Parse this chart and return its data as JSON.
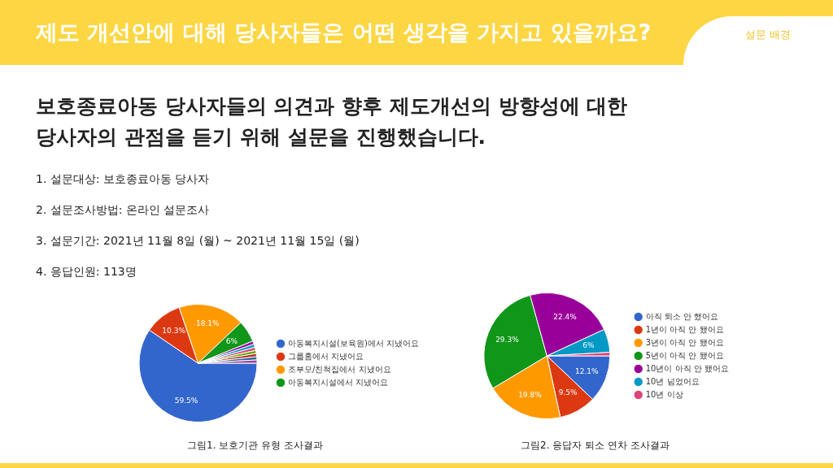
{
  "chart_data": [
    {
      "type": "other",
      "title": "제도 개선안에 대해 당사자들은 어떤 생각을 가지고 있을까요?",
      "subtitle": "보호종료아동 당사자들의 의견과 향후 제도개선의 방향성에 대한 당사자의 관점을 듣기 위해 설문을 진행했습니다.",
      "annotations": [
        "설문 배경",
        "1. 설문대상: 보호종료아동 당사자",
        "2. 설문조사방법: 온라인 설문조사",
        "3. 설문기간: 2021년 11월 8일 (월) ~ 2021년 11월 15일 (월)",
        "4. 응답인원: 113명"
      ]
    },
    {
      "type": "pie",
      "title": "그림1. 보호기관 유형 조사결과",
      "legend": "right",
      "categories": [
        "아동복지시설(보육원)에서 지냈어요",
        "그룹홈에서 지냈어요",
        "조부모/친척집에서 지냈어요",
        "아동복지시설에서 지냈어요",
        null,
        null,
        null,
        null,
        null,
        null,
        null
      ],
      "values": [
        59.5,
        10.3,
        18.1,
        6,
        0.87,
        0.87,
        0.87,
        0.87,
        0.87,
        0.87,
        0.88
      ],
      "value_labels": [
        "59.5%",
        "10.3%",
        "18.1%",
        "6%",
        null,
        null,
        null,
        null,
        null,
        null,
        null
      ],
      "colors": [
        "#3366cc",
        "#dc3912",
        "#ff9900",
        "#109618",
        "#990099",
        "#0099c6",
        "#dd4477",
        "#66aa00",
        "#b82e2e",
        "#316395",
        "#994499"
      ]
    },
    {
      "type": "pie",
      "title": "그림2. 응답자 퇴소 연차 조사결과",
      "legend": "right",
      "categories": [
        "아직 퇴소 안 했어요",
        "1년이 아직 안 됐어요",
        "3년이 아직 안 됐어요",
        "5년이 아직 안 됐어요",
        "10년이 아직 안 됐어요",
        "10년 넘었어요",
        "10년 이상"
      ],
      "values": [
        12.1,
        9.5,
        19.8,
        29.3,
        22.4,
        6,
        0.9
      ],
      "value_labels": [
        "12.1%",
        "9.5%",
        "19.8%",
        "29.3%",
        "22.4%",
        "6%",
        null
      ],
      "colors": [
        "#3366cc",
        "#dc3912",
        "#ff9900",
        "#109618",
        "#990099",
        "#0099c6",
        "#dd4477"
      ]
    }
  ]
}
